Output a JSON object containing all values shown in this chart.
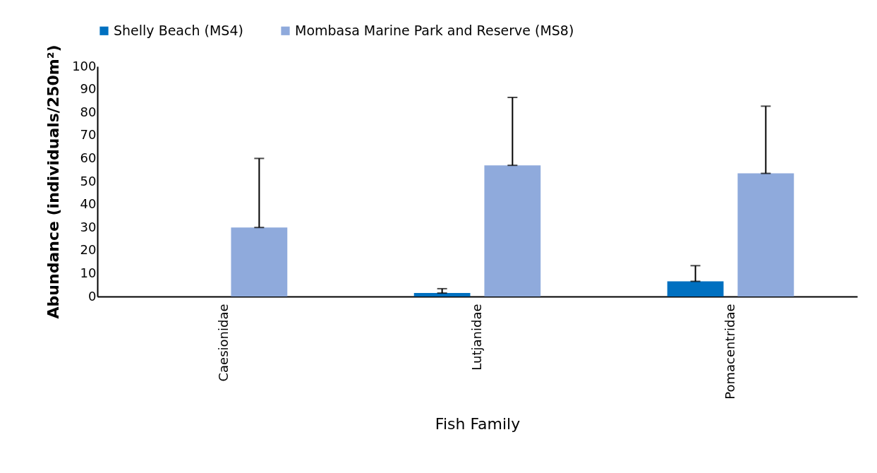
{
  "chart_data": {
    "type": "bar",
    "xlabel": "Fish Family",
    "ylabel": "Abundance (individuals/250m²)",
    "categories": [
      "Caesionidae",
      "Lutjanidae",
      "Pomacentridae"
    ],
    "series": [
      {
        "name": "Shelly Beach (MS4)",
        "color": "#0070c0",
        "values": [
          0,
          1.5,
          6.6
        ],
        "errors": [
          null,
          [
            1.5,
            3.4
          ],
          [
            6.6,
            13.4
          ]
        ]
      },
      {
        "name": "Mombasa Marine Park and Reserve (MS8)",
        "color": "#8faadc",
        "values": [
          30,
          57,
          53.5
        ],
        "errors": [
          [
            30,
            60
          ],
          [
            57,
            86.5
          ],
          [
            53.5,
            82.7
          ]
        ]
      }
    ],
    "ylim": [
      0,
      100
    ],
    "yticks": [
      0,
      10,
      20,
      30,
      40,
      50,
      60,
      70,
      80,
      90,
      100
    ],
    "legend": "top"
  }
}
